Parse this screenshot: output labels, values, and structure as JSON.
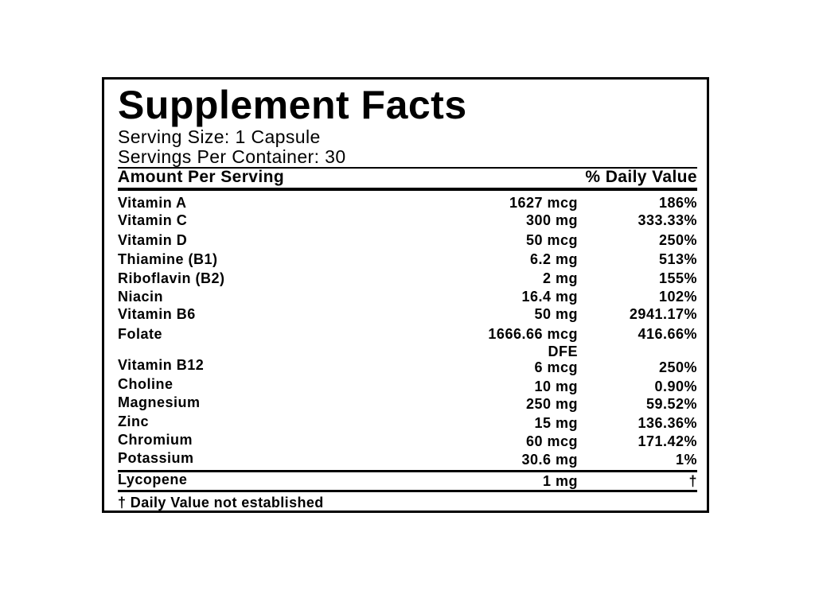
{
  "title": "Supplement Facts",
  "serving_size": "Serving Size: 1 Capsule",
  "servings_per_container": "Servings Per Container: 30",
  "header": {
    "amount": "Amount Per Serving",
    "daily_value": "% Daily Value"
  },
  "nutrients": [
    {
      "name": "Vitamin A",
      "amount": "1627 mcg",
      "dv": "186%"
    },
    {
      "name": "Vitamin C",
      "amount": "300 mg",
      "dv": "333.33%"
    },
    {
      "name": "Vitamin D",
      "amount": "50 mcg",
      "dv": "250%"
    },
    {
      "name": "Thiamine (B1)",
      "amount": "6.2 mg",
      "dv": "513%"
    },
    {
      "name": "Riboflavin (B2)",
      "amount": "2 mg",
      "dv": "155%"
    },
    {
      "name": "Niacin",
      "amount": "16.4 mg",
      "dv": "102%"
    },
    {
      "name": "Vitamin B6",
      "amount": "50 mg",
      "dv": "2941.17%"
    },
    {
      "name": "Folate",
      "amount": "1666.66 mcg",
      "amount_line2": "DFE",
      "dv": "416.66%"
    },
    {
      "name": "Vitamin B12",
      "amount": "6 mcg",
      "dv": "250%"
    },
    {
      "name": "Choline",
      "amount": "10 mg",
      "dv": "0.90%"
    },
    {
      "name": "Magnesium",
      "amount": "250 mg",
      "dv": "59.52%"
    },
    {
      "name": "Zinc",
      "amount": "15 mg",
      "dv": "136.36%"
    },
    {
      "name": "Chromium",
      "amount": "60 mcg",
      "dv": "171.42%"
    },
    {
      "name": "Potassium",
      "amount": "30.6 mg",
      "dv": "1%"
    }
  ],
  "other": [
    {
      "name": "Lycopene",
      "amount": "1 mg",
      "dv": "†"
    }
  ],
  "footnote": "† Daily Value not established"
}
